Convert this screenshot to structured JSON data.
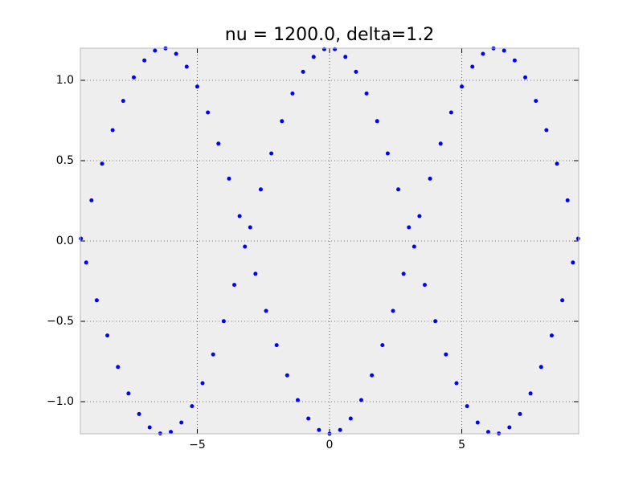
{
  "chart_data": {
    "type": "scatter",
    "title": "nu = 1200.0, delta=1.2",
    "color": "#0000ff",
    "background": "#eeeeee",
    "grid": true,
    "xlim": [
      -9.42,
      9.42
    ],
    "ylim": [
      -1.2,
      1.2
    ],
    "xticks": [
      {
        "value": -5,
        "label": "−5"
      },
      0,
      5
    ],
    "yticks": [
      {
        "value": -1.0,
        "label": "−1.0"
      },
      {
        "value": -0.5,
        "label": "−0.5"
      },
      {
        "value": 0,
        "label": "0.0"
      },
      {
        "value": 0.5,
        "label": "0.5"
      },
      {
        "value": 1.0,
        "label": "1.0"
      }
    ],
    "x": [
      -9.4,
      -9.2,
      -9.0,
      -8.8,
      -8.6,
      -8.4,
      -8.2,
      -8.0,
      -7.8,
      -7.6,
      -7.4,
      -7.2,
      -7.0,
      -6.8,
      -6.6,
      -6.4,
      -6.2,
      -6.0,
      -5.8,
      -5.6,
      -5.4,
      -5.2,
      -5.0,
      -4.8,
      -4.6,
      -4.4,
      -4.2,
      -4.0,
      -3.8,
      -3.6,
      -3.4,
      -3.2,
      -3.0,
      -2.8,
      -2.6,
      -2.4,
      -2.2,
      -2.0,
      -1.8,
      -1.6,
      -1.4,
      -1.2,
      -1.0,
      -0.8,
      -0.6,
      -0.4,
      -0.2,
      0.0,
      0.2,
      0.4,
      0.6,
      0.8,
      1.0,
      1.2,
      1.4,
      1.6,
      1.8,
      2.0,
      2.2,
      2.4,
      2.6,
      2.8,
      3.0,
      3.2,
      3.4,
      3.6,
      3.8,
      4.0,
      4.2,
      4.4,
      4.6,
      4.8,
      5.0,
      5.2,
      5.4,
      5.6,
      5.8,
      6.0,
      6.2,
      6.4,
      6.6,
      6.8,
      7.0,
      7.2,
      7.4,
      7.6,
      7.8,
      8.0,
      8.2,
      8.4,
      8.6,
      8.8,
      9.0,
      9.2,
      9.4
    ],
    "values": [
      0.015,
      -0.134,
      0.253,
      -0.369,
      0.481,
      -0.588,
      0.69,
      -0.784,
      0.872,
      -0.949,
      1.018,
      -1.077,
      1.124,
      -1.16,
      1.185,
      -1.198,
      1.199,
      -1.188,
      1.165,
      -1.13,
      1.085,
      -1.028,
      0.961,
      -0.885,
      0.8,
      -0.706,
      0.606,
      -0.499,
      0.388,
      -0.273,
      0.155,
      -0.035,
      0.085,
      -0.204,
      0.321,
      -0.435,
      0.545,
      -0.648,
      0.746,
      -0.836,
      0.918,
      -0.99,
      1.053,
      -1.105,
      1.146,
      -1.176,
      1.194,
      -1.2,
      1.194,
      -1.176,
      1.146,
      -1.105,
      1.053,
      -0.99,
      0.918,
      -0.836,
      0.746,
      -0.648,
      0.545,
      -0.435,
      0.321,
      -0.204,
      0.085,
      -0.035,
      0.155,
      -0.273,
      0.388,
      -0.499,
      0.606,
      -0.706,
      0.8,
      -0.885,
      0.961,
      -1.028,
      1.085,
      -1.13,
      1.165,
      -1.188,
      1.199,
      -1.198,
      1.185,
      -1.16,
      1.124,
      -1.077,
      1.018,
      -0.949,
      0.872,
      -0.784,
      0.69,
      -0.588,
      0.481,
      -0.369,
      0.253,
      -0.134,
      0.015
    ]
  }
}
